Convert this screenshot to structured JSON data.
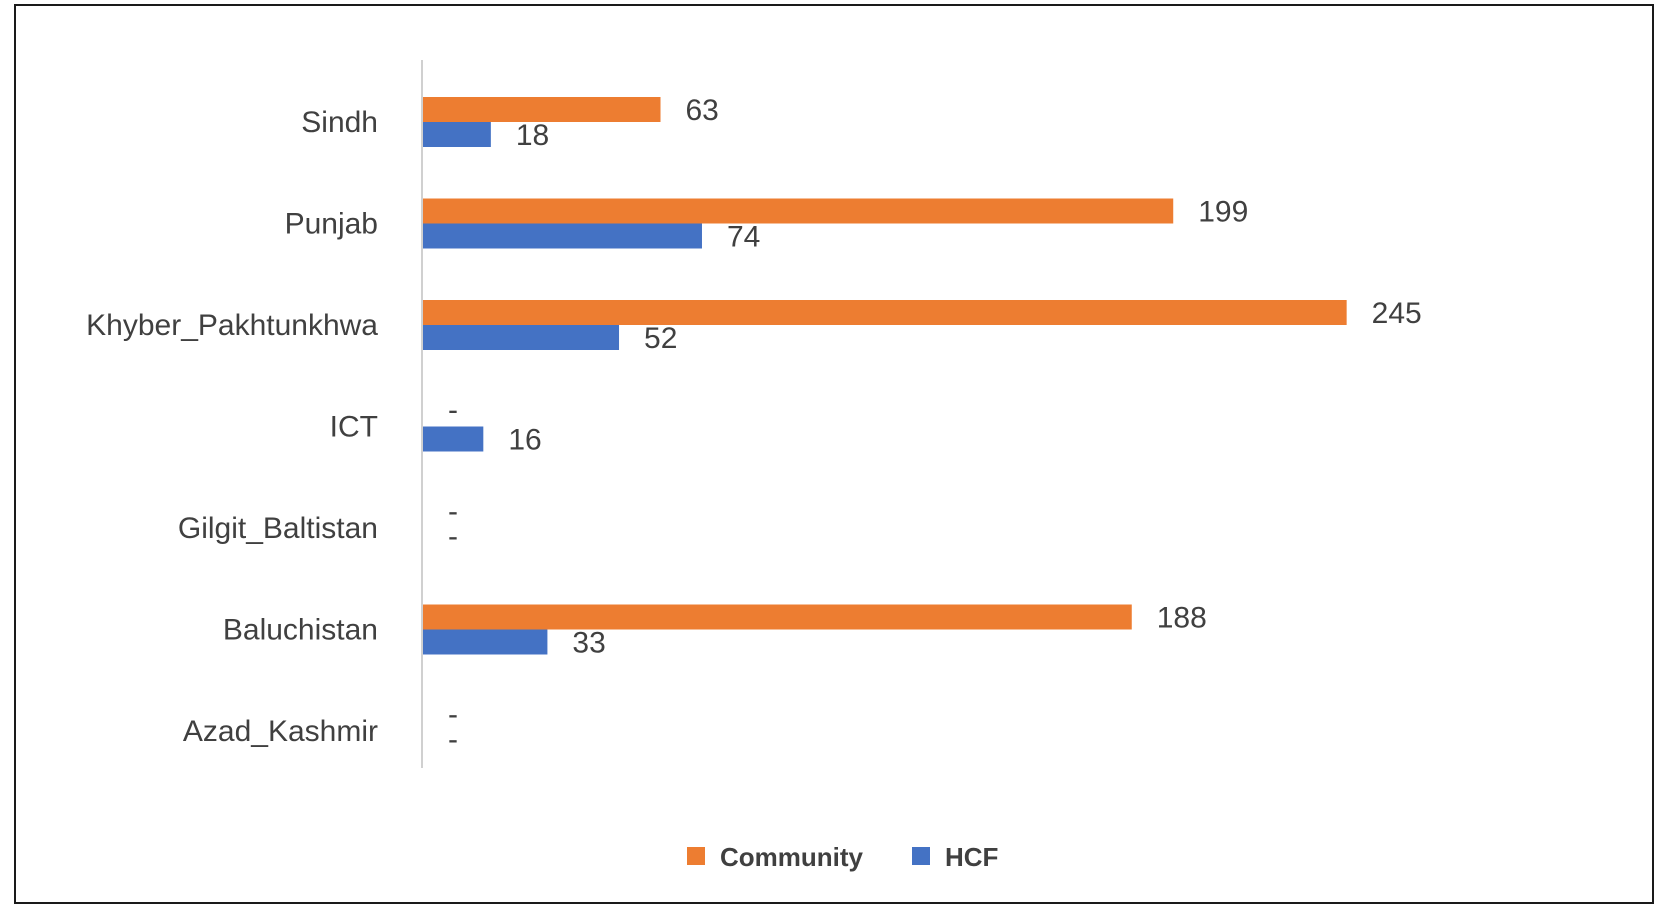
{
  "chart_data": {
    "type": "bar",
    "orientation": "horizontal",
    "categories": [
      "Sindh",
      "Punjab",
      "Khyber_Pakhtunkhwa",
      "ICT",
      "Gilgit_Baltistan",
      "Baluchistan",
      "Azad_Kashmir"
    ],
    "series": [
      {
        "name": "Community",
        "values": [
          63,
          199,
          245,
          null,
          null,
          188,
          null
        ],
        "labels": [
          "63",
          "199",
          "245",
          "-",
          "-",
          "188",
          "-"
        ],
        "color": "#ED7D31"
      },
      {
        "name": "HCF",
        "values": [
          18,
          74,
          52,
          16,
          null,
          33,
          null
        ],
        "labels": [
          "18",
          "74",
          "52",
          "16",
          "-",
          "33",
          "-"
        ],
        "color": "#4472C4"
      }
    ],
    "xlim": [
      0,
      260
    ],
    "grid": false,
    "legend": "bottom"
  }
}
